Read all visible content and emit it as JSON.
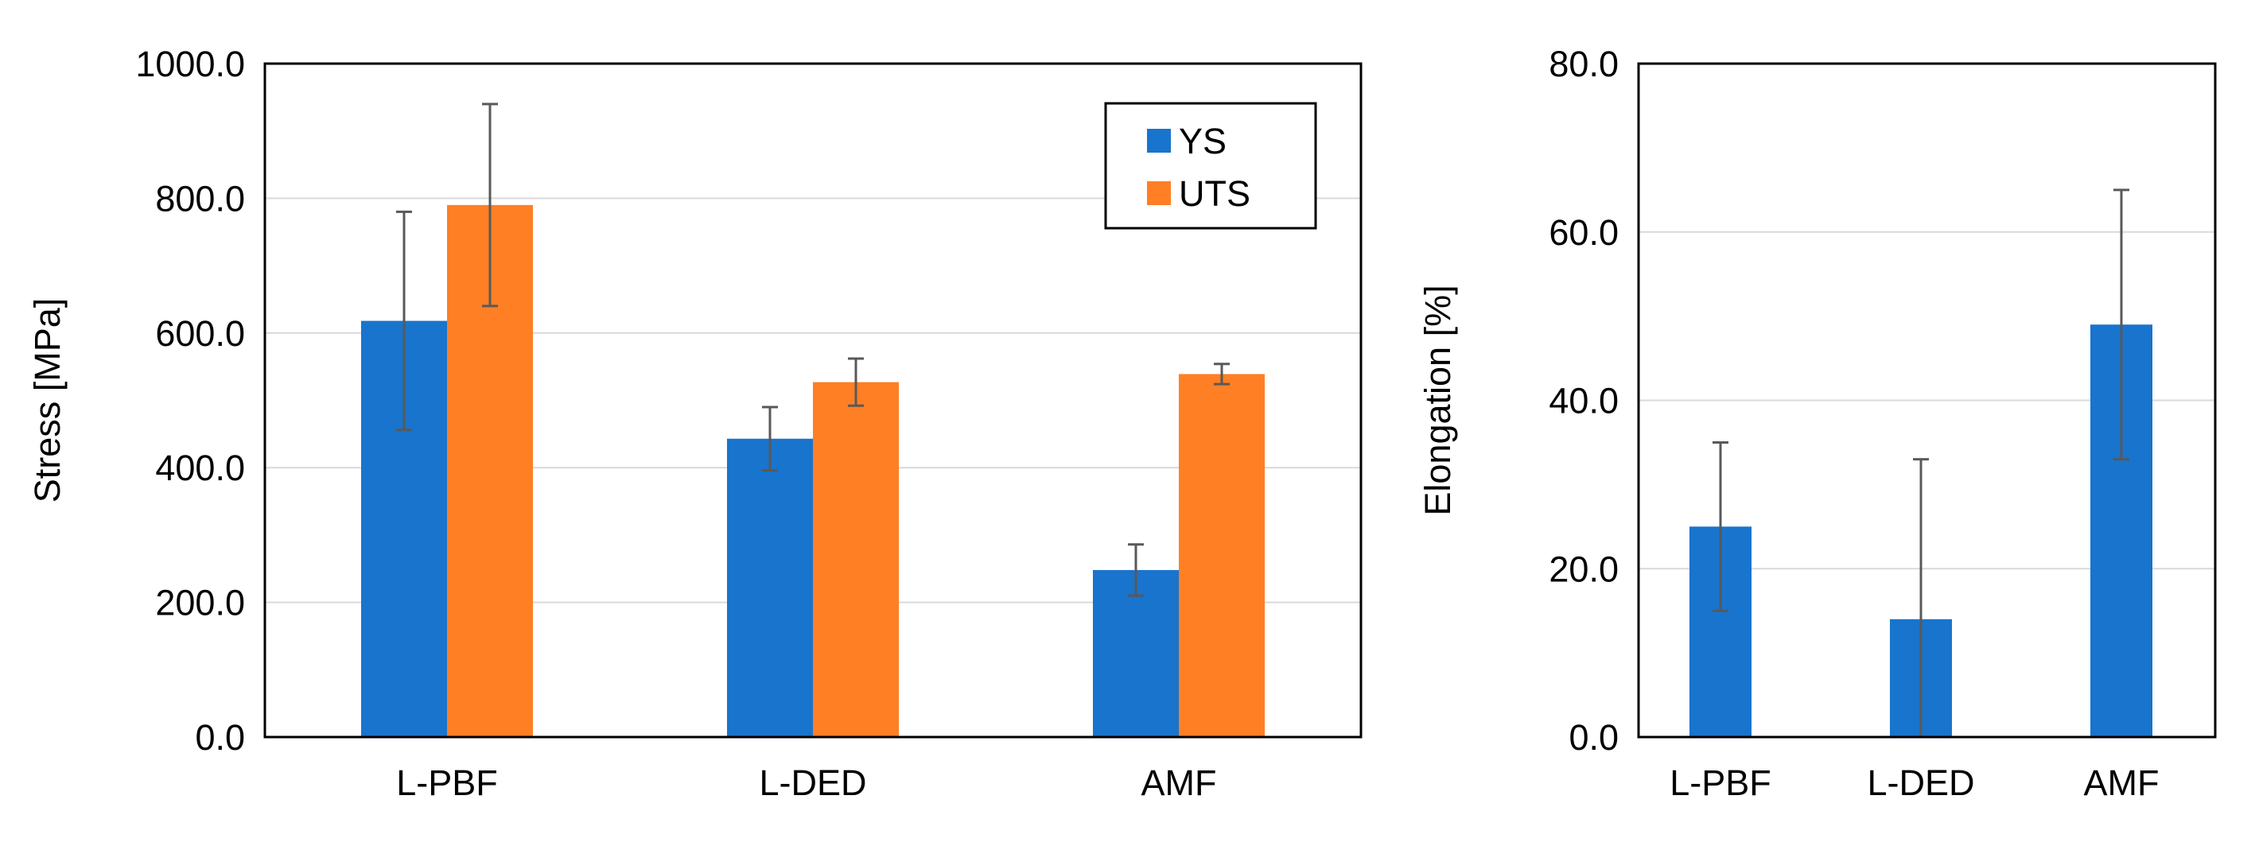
{
  "colors": {
    "ys": "#1874CD",
    "uts": "#FF7F24",
    "error": "#595959",
    "grid": "#D9D9D9",
    "frame": "#000000"
  },
  "chart_data": [
    {
      "type": "bar",
      "title": "",
      "xlabel": "",
      "ylabel": "Stress [MPa]",
      "ylim": [
        0,
        1000
      ],
      "ytick_step": 200,
      "ytick_labels": [
        "0.0",
        "200.0",
        "400.0",
        "600.0",
        "800.0",
        "1000.0"
      ],
      "grid": true,
      "legend_position": "top-right",
      "categories": [
        "L-PBF",
        "L-DED",
        "AMF"
      ],
      "series": [
        {
          "name": "YS",
          "color_key": "ys",
          "values": [
            618,
            443,
            248
          ],
          "errors": [
            162,
            47,
            38
          ]
        },
        {
          "name": "UTS",
          "color_key": "uts",
          "values": [
            790,
            527,
            539
          ],
          "errors": [
            150,
            35,
            15
          ]
        }
      ]
    },
    {
      "type": "bar",
      "title": "",
      "xlabel": "",
      "ylabel": "Elongation [%]",
      "ylim": [
        0,
        80
      ],
      "ytick_step": 20,
      "ytick_labels": [
        "0.0",
        "20.0",
        "40.0",
        "60.0",
        "80.0"
      ],
      "grid": true,
      "categories": [
        "L-PBF",
        "L-DED",
        "AMF"
      ],
      "series": [
        {
          "name": "Elongation",
          "color_key": "ys",
          "values": [
            25,
            14,
            49
          ],
          "errors": [
            10,
            19,
            16
          ]
        }
      ]
    }
  ]
}
